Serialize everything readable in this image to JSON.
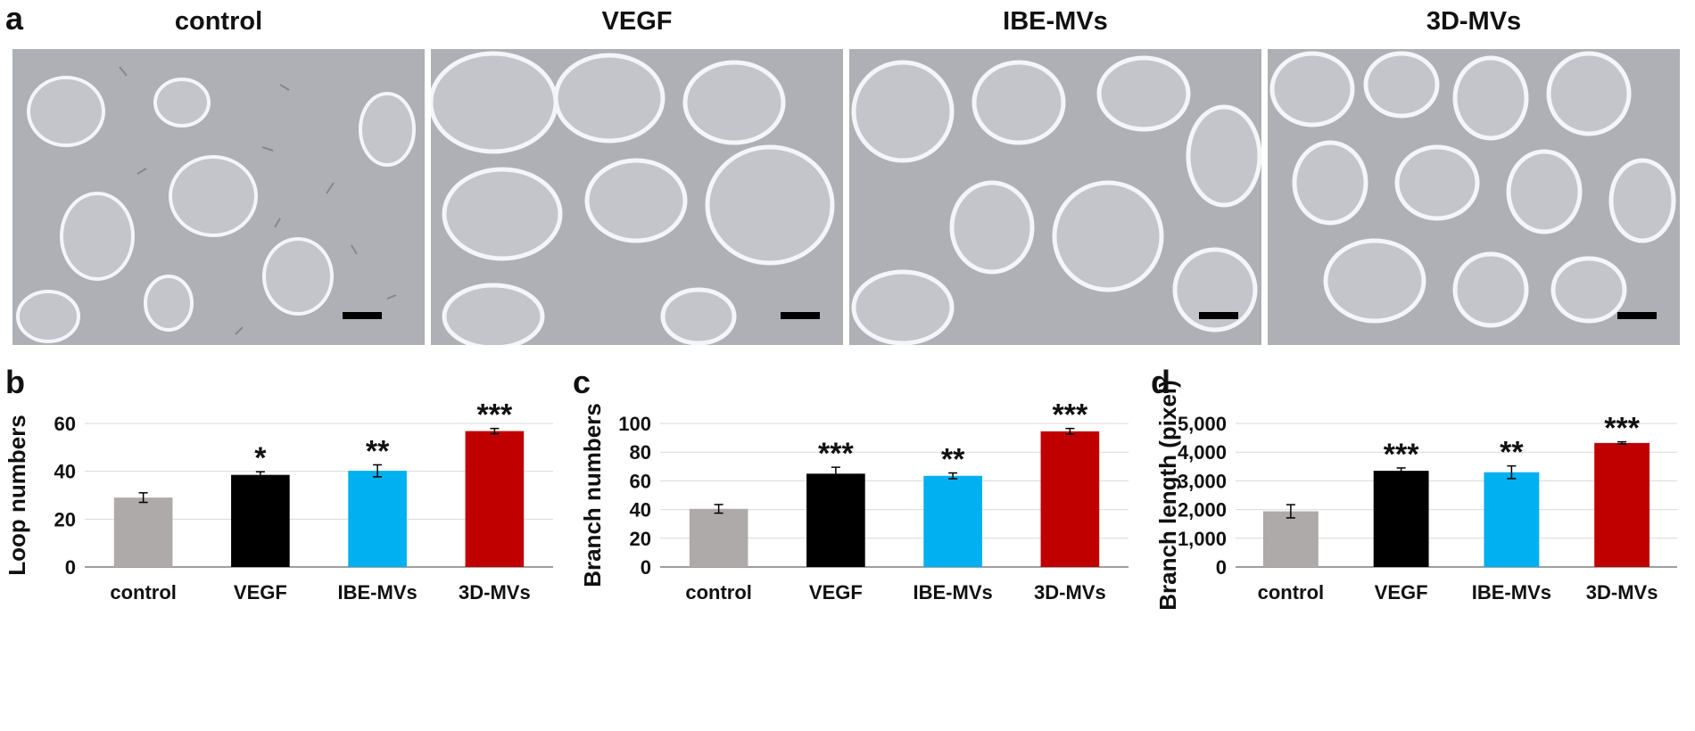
{
  "figure": {
    "panel_labels": {
      "a": "a",
      "b": "b",
      "c": "c",
      "d": "d"
    },
    "micrographs": [
      {
        "title": "control"
      },
      {
        "title": "VEGF"
      },
      {
        "title": "IBE-MVs"
      },
      {
        "title": "3D-MVs"
      }
    ]
  },
  "chart_data": [
    {
      "type": "bar",
      "panel": "b",
      "ylabel": "Loop numbers",
      "categories": [
        "control",
        "VEGF",
        "IBE-MVs",
        "3D-MVs"
      ],
      "values": [
        29,
        38.5,
        40.2,
        56.8
      ],
      "errors": [
        2.0,
        1.3,
        2.5,
        1.1
      ],
      "significance": [
        "",
        "*",
        "**",
        "***"
      ],
      "colors": [
        "#aeaaaa",
        "#000000",
        "#00b0f0",
        "#c00000"
      ],
      "ylim": [
        0,
        60
      ],
      "yticks": [
        0,
        20,
        40,
        60
      ],
      "ytick_labels": [
        "0",
        "20",
        "40",
        "60"
      ]
    },
    {
      "type": "bar",
      "panel": "c",
      "ylabel": "Branch numbers",
      "categories": [
        "control",
        "VEGF",
        "IBE-MVs",
        "3D-MVs"
      ],
      "values": [
        40.5,
        65,
        63.5,
        94.5
      ],
      "errors": [
        3.0,
        4.5,
        2.0,
        2.0
      ],
      "significance": [
        "",
        "***",
        "**",
        "***"
      ],
      "colors": [
        "#aeaaaa",
        "#000000",
        "#00b0f0",
        "#c00000"
      ],
      "ylim": [
        0,
        100
      ],
      "yticks": [
        0,
        20,
        40,
        60,
        80,
        100
      ],
      "ytick_labels": [
        "0",
        "20",
        "40",
        "60",
        "80",
        "100"
      ]
    },
    {
      "type": "bar",
      "panel": "d",
      "ylabel": "Branch length (pixel)",
      "categories": [
        "control",
        "VEGF",
        "IBE-MVs",
        "3D-MVs"
      ],
      "values": [
        1940,
        3350,
        3300,
        4320
      ],
      "errors": [
        230,
        100,
        220,
        40
      ],
      "significance": [
        "",
        "***",
        "**",
        "***"
      ],
      "colors": [
        "#aeaaaa",
        "#000000",
        "#00b0f0",
        "#c00000"
      ],
      "ylim": [
        0,
        5000
      ],
      "yticks": [
        0,
        1000,
        2000,
        3000,
        4000,
        5000
      ],
      "ytick_labels": [
        "0",
        "1,000",
        "2,000",
        "3,000",
        "4,000",
        "5,000"
      ]
    }
  ]
}
